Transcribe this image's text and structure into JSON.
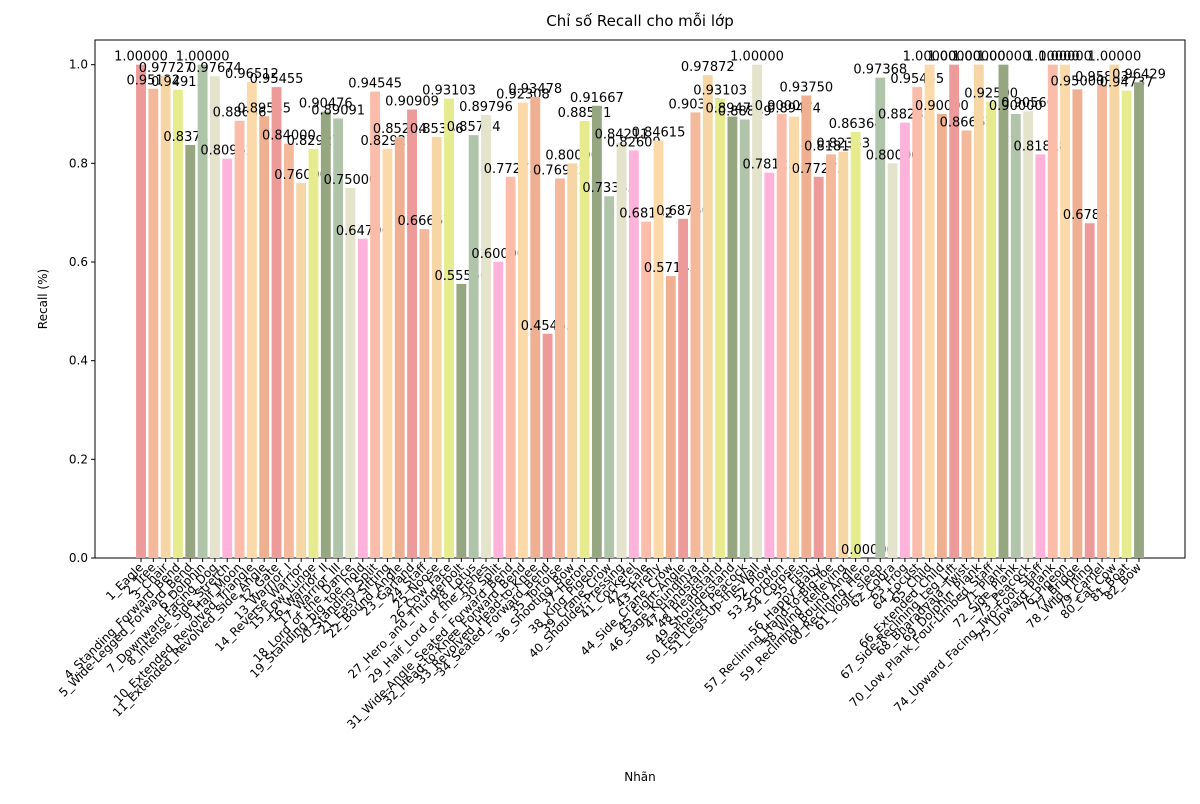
{
  "chart_data": {
    "type": "bar",
    "title": "Chỉ số Recall cho mỗi lớp",
    "x_label": "Nhãn",
    "y_label": "Recall (%)",
    "categories": [
      "1_Eagle",
      "2_Tree",
      "3_Chair",
      "4_Standing_Forward_Bend",
      "5_Wide-Legged_Forward_Bend",
      "6_Dolphin",
      "7_Downward-Facing_Dog",
      "8_Intense_Side_Stretch",
      "9_Half_Moon",
      "10_Extended_Revolved_Triangle",
      "11_Extended_Revolved_Side_Angle",
      "12_Gate",
      "13_Warrior_I",
      "14_Reverse_Warrior",
      "15_Low_Lunge",
      "16_Warrior_II",
      "17_Warrior_III",
      "18_Lord_of_the_Dance",
      "19_Standing_big_toe_hold",
      "20_Standing_Split",
      "21_Easy_Sitting",
      "22_Bound_Angle",
      "23_Garland",
      "24_Staff",
      "25_Noose",
      "26_Cow_Face",
      "27_Hero_and_Thunderbolt",
      "28_Lotus",
      "29_Half_Lord_of_the_Fishes",
      "30_Split",
      "31_Wide-Angle_Seated_Forward_Bend",
      "32_Head-to-Knee_Forward_Bend",
      "33_Revolved_Head-to-Knee",
      "34_Seated_Forward_Bend",
      "35_Tortoise",
      "36_Shooting_Bow",
      "37_Heron",
      "38_King_Pigeon",
      "39_Crane_Crow",
      "40_Shoulder-Pressing",
      "41_Cockerel",
      "42_Scale",
      "43_Firefly",
      "44_Side_Crane_Crow",
      "45_Eight-Angle",
      "46_Sage_Koundinya",
      "47_Handstand",
      "48_Headstand",
      "49_Shoulderstand",
      "50_Feathered_Peacock",
      "51_Legs-Up-the-Wall",
      "52_Plow",
      "53_Scorpion",
      "54_Corpse",
      "55_Fish",
      "56_Happy_Baby",
      "57_Reclining_Hand-to-Big-Toe",
      "58_Wind_Relieving",
      "59_Reclining_Bound_Angle",
      "60_Reclining_Hero",
      "61_Yogic_sleep",
      "62_Cobra",
      "63_Frog",
      "64_Locust",
      "65_Child",
      "66_Extended_Child",
      "67_Side-Reclining_Leg_Lift",
      "68_Bharadvaja_Twist",
      "69_Dolphin_Plank",
      "70_Low_Plank_Four-Limbed_Staff",
      "71_Plank",
      "72_Side_Plank",
      "73_Peacock",
      "74_Upward_Facing_Two-Foot_Staff",
      "75_Upward_Plank",
      "76_Pigeon",
      "77_Bridge",
      "78_Wild_Thing",
      "79_Camel",
      "80_Cat_Cow",
      "81_Boat",
      "82_Bow"
    ],
    "values": [
      1.0,
      0.95122,
      0.97727,
      0.94915,
      0.83721,
      1.0,
      0.97674,
      0.80952,
      0.88636,
      0.96512,
      0.89535,
      0.95455,
      0.84,
      0.76,
      0.82927,
      0.90476,
      0.89091,
      0.75,
      0.64706,
      0.94545,
      0.82927,
      0.85294,
      0.90909,
      0.66667,
      0.85366,
      0.93103,
      0.55556,
      0.85714,
      0.89796,
      0.6,
      0.77273,
      0.92308,
      0.93478,
      0.45455,
      0.76923,
      0.8,
      0.88571,
      0.91667,
      0.73333,
      0.84211,
      0.82609,
      0.68182,
      0.84615,
      0.57143,
      0.6875,
      0.90323,
      0.97872,
      0.93103,
      0.89474,
      0.88889,
      1.0,
      0.78125,
      0.9,
      0.89474,
      0.9375,
      0.77273,
      0.81818,
      0.82353,
      0.86364,
      0.0,
      0.97368,
      0.8,
      0.88235,
      0.95455,
      1.0,
      0.9,
      1.0,
      0.86667,
      1.0,
      0.925,
      1.0,
      0.9,
      0.90566,
      0.81818,
      1.0,
      1.0,
      0.95,
      0.67857,
      0.95833,
      1.0,
      0.94737,
      0.96429
    ],
    "value_labels": [
      "1.00000",
      "0.95122",
      "0.97727",
      "0.94915",
      "0.83721",
      "1.00000",
      "0.97674",
      "0.80952",
      "0.88636",
      "0.96512",
      "0.89535",
      "0.95455",
      "0.84000",
      "0.76000",
      "0.82927",
      "0.90476",
      "0.89091",
      "0.75000",
      "0.64706",
      "0.94545",
      "0.82927",
      "0.85294",
      "0.90909",
      "0.66667",
      "0.85366",
      "0.93103",
      "0.55556",
      "0.85714",
      "0.89796",
      "0.60000",
      "0.77273",
      "0.92308",
      "0.93478",
      "0.45455",
      "0.76923",
      "0.80000",
      "0.88571",
      "0.91667",
      "0.73333",
      "0.84211",
      "0.82609",
      "0.68182",
      "0.84615",
      "0.57143",
      "0.68750",
      "0.90323",
      "0.97872",
      "0.93103",
      "0.89474",
      "0.88889",
      "1.00000",
      "0.78125",
      "0.90000",
      "0.89474",
      "0.93750",
      "0.77273",
      "0.81818",
      "0.82353",
      "0.86364",
      "0.00000",
      "0.97368",
      "0.80000",
      "0.88235",
      "0.95455",
      "1.00000",
      "0.90000",
      "1.00000",
      "0.86667",
      "1.00000",
      "0.92500",
      "1.00000",
      "0.90000",
      "0.90566",
      "0.81818",
      "1.00000",
      "1.00000",
      "0.95000",
      "0.67857",
      "0.95833",
      "1.00000",
      "0.94737",
      "0.96429"
    ],
    "palette": [
      "#ec9a9a",
      "#f4b89a",
      "#f7d6a6",
      "#e6ec8e",
      "#95a680",
      "#b0c4aa",
      "#e4e4cc",
      "#ffb3da",
      "#fbbcaa",
      "#fbd9a8",
      "#eeb090"
    ],
    "ylim": [
      0,
      1.05
    ],
    "yticks": [
      {
        "value": 0,
        "label": "0.0"
      },
      0.2,
      0.4,
      0.6,
      0.8,
      {
        "value": 1,
        "label": "1.0"
      }
    ]
  }
}
